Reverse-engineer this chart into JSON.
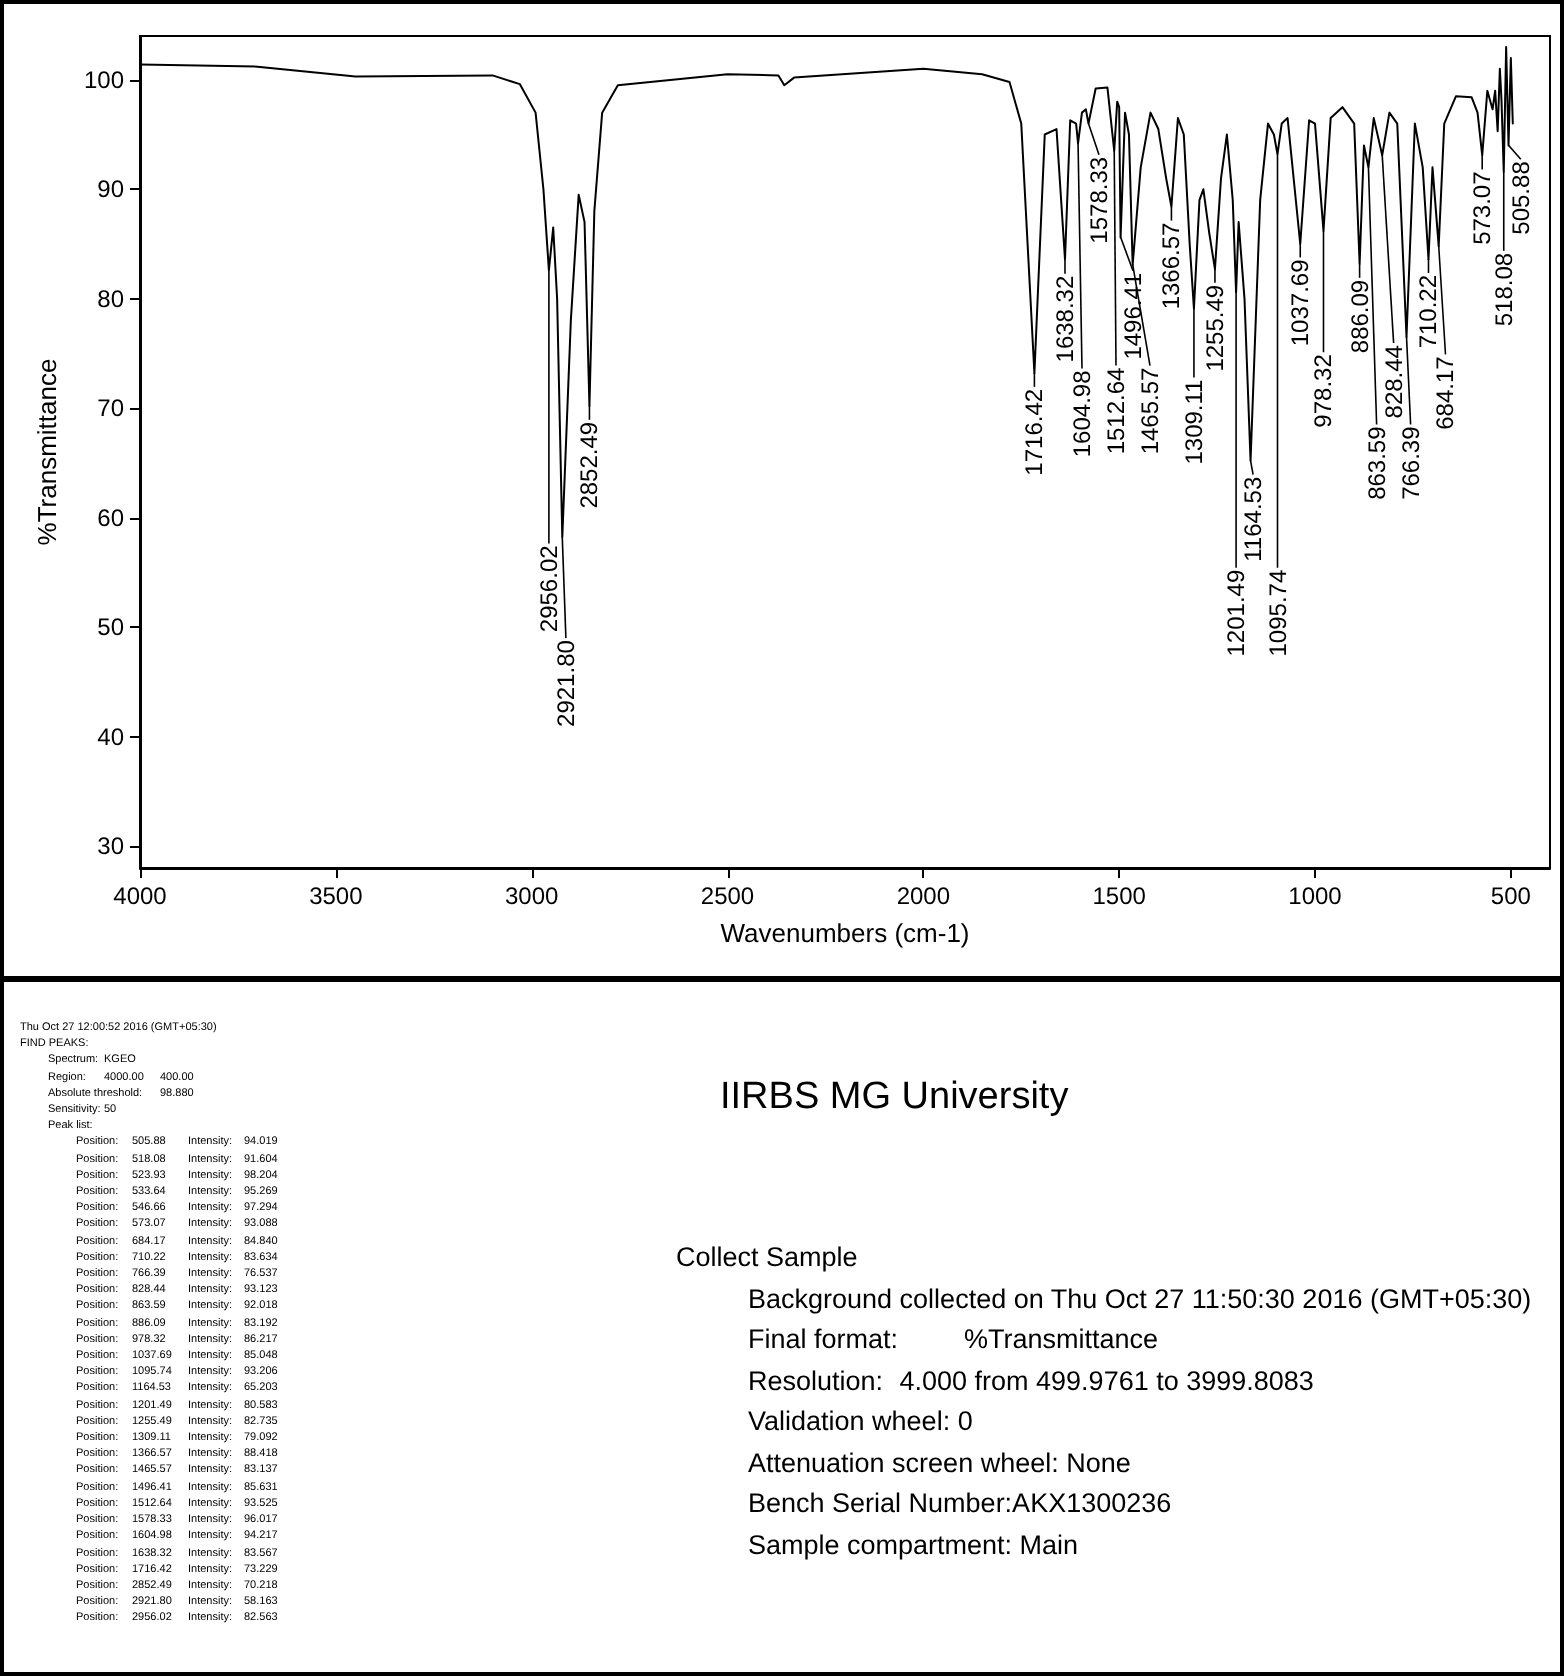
{
  "chart_data": {
    "type": "line",
    "title": "IIRBS MG University",
    "xlabel": "Wavenumbers (cm-1)",
    "ylabel": "%Transmittance",
    "xlim": [
      4000,
      400
    ],
    "xticks": [
      4000,
      3500,
      3000,
      2500,
      2000,
      1500,
      1000,
      500
    ],
    "ylim": [
      28,
      104
    ],
    "yticks": [
      30,
      40,
      50,
      60,
      70,
      80,
      90,
      100
    ],
    "grid": false,
    "marker": "none",
    "line_style": "solid",
    "series": [
      {
        "color": "#000000",
        "x": [
          4000,
          3700,
          3450,
          3100,
          3030,
          2990,
          2970,
          2956.02,
          2945,
          2935,
          2921.8,
          2900,
          2880,
          2865,
          2852.49,
          2840,
          2820,
          2780,
          2500,
          2370,
          2355,
          2330,
          2000,
          1850,
          1780,
          1750,
          1716.42,
          1690,
          1660,
          1638.32,
          1625,
          1610,
          1604.98,
          1595,
          1585,
          1578.33,
          1560,
          1530,
          1512.64,
          1505,
          1500,
          1496.41,
          1485,
          1475,
          1465.57,
          1445,
          1420,
          1400,
          1380,
          1366.57,
          1350,
          1335,
          1320,
          1309.11,
          1295,
          1285,
          1270,
          1255.49,
          1240,
          1225,
          1210,
          1201.49,
          1195,
          1180,
          1164.53,
          1140,
          1120,
          1105,
          1095.74,
          1085,
          1070,
          1037.69,
          1015,
          1000,
          978.32,
          960,
          930,
          900,
          886.09,
          875,
          863.59,
          850,
          828.44,
          810,
          790,
          766.39,
          745,
          725,
          710.22,
          700,
          684.17,
          670,
          640,
          600,
          585,
          573.07,
          560,
          546.66,
          540,
          533.64,
          528,
          523.93,
          518.08,
          512,
          505.88,
          500,
          495
        ],
        "values": [
          101.4,
          101.2,
          100.3,
          100.4,
          99.6,
          97,
          90,
          82.6,
          86.5,
          80,
          58.2,
          78,
          89.5,
          87,
          70.2,
          88,
          97,
          99.5,
          100.5,
          100.4,
          99.5,
          100.2,
          101,
          100.5,
          99.8,
          96,
          73.2,
          95,
          95.5,
          83.6,
          96.3,
          96,
          94.2,
          97,
          97.3,
          96,
          99.2,
          99.3,
          93.5,
          98,
          97.5,
          85.6,
          97,
          95,
          83.1,
          92,
          97,
          95.5,
          91,
          88.4,
          96.5,
          95,
          85,
          79.1,
          89,
          90,
          86,
          82.7,
          91,
          95,
          89,
          80.6,
          87,
          80,
          65.2,
          89,
          96,
          95,
          93.2,
          96,
          96.5,
          85,
          96.3,
          96,
          86.2,
          96.5,
          97.5,
          96,
          83.2,
          94,
          92,
          96.5,
          93.1,
          97,
          96,
          76.5,
          96,
          92,
          83.6,
          92,
          84.8,
          96,
          98.5,
          98.4,
          97,
          93.1,
          99,
          97.3,
          99,
          95.3,
          101,
          98.2,
          91.6,
          103,
          94,
          102,
          96
        ]
      }
    ],
    "annotations": [
      {
        "text": "2956.02",
        "x": 2956.02,
        "y": 82.563
      },
      {
        "text": "2921.80",
        "x": 2921.8,
        "y": 58.163
      },
      {
        "text": "2852.49",
        "x": 2852.49,
        "y": 70.218
      },
      {
        "text": "1716.42",
        "x": 1716.42,
        "y": 73.229
      },
      {
        "text": "1638.32",
        "x": 1638.32,
        "y": 83.567
      },
      {
        "text": "1604.98",
        "x": 1604.98,
        "y": 94.217
      },
      {
        "text": "1578.33",
        "x": 1578.33,
        "y": 96.017
      },
      {
        "text": "1512.64",
        "x": 1512.64,
        "y": 93.525
      },
      {
        "text": "1496.41",
        "x": 1496.41,
        "y": 85.631
      },
      {
        "text": "1465.57",
        "x": 1465.57,
        "y": 83.137
      },
      {
        "text": "1366.57",
        "x": 1366.57,
        "y": 88.418
      },
      {
        "text": "1309.11",
        "x": 1309.11,
        "y": 79.092
      },
      {
        "text": "1255.49",
        "x": 1255.49,
        "y": 82.735
      },
      {
        "text": "1201.49",
        "x": 1201.49,
        "y": 80.583
      },
      {
        "text": "1164.53",
        "x": 1164.53,
        "y": 65.203
      },
      {
        "text": "1095.74",
        "x": 1095.74,
        "y": 93.206
      },
      {
        "text": "1037.69",
        "x": 1037.69,
        "y": 85.048
      },
      {
        "text": "978.32",
        "x": 978.32,
        "y": 86.217
      },
      {
        "text": "886.09",
        "x": 886.09,
        "y": 83.192
      },
      {
        "text": "863.59",
        "x": 863.59,
        "y": 92.018
      },
      {
        "text": "828.44",
        "x": 828.44,
        "y": 93.123
      },
      {
        "text": "766.39",
        "x": 766.39,
        "y": 76.537
      },
      {
        "text": "710.22",
        "x": 710.22,
        "y": 83.634
      },
      {
        "text": "684.17",
        "x": 684.17,
        "y": 84.84
      },
      {
        "text": "573.07",
        "x": 573.07,
        "y": 93.088
      },
      {
        "text": "518.08",
        "x": 518.08,
        "y": 91.604
      },
      {
        "text": "505.88",
        "x": 505.88,
        "y": 94.019
      },
      "Thu Oct 27 12:00:52 2016 (GMT+05:30)\nFIND PEAKS:\n\tSpectrum:\tKGEO\n\tRegion:\t4000.00\t400.00\n\tAbsolute threshold:\t98.880\n\tSensitivity:\t50\n\tPeak list:\n\t\tPosition:\t505.88\tIntensity:\t94.019\n\t\tPosition:\t518.08\tIntensity:\t91.604\n\t\tPosition:\t523.93\tIntensity:\t98.204\n\t\tPosition:\t533.64\tIntensity:\t95.269\n\t\tPosition:\t546.66\tIntensity:\t97.294\n\t\tPosition:\t573.07\tIntensity:\t93.088\n\t\tPosition:\t684.17\tIntensity:\t84.840\n\t\tPosition:\t710.22\tIntensity:\t83.634\n\t\tPosition:\t766.39\tIntensity:\t76.537\n\t\tPosition:\t828.44\tIntensity:\t93.123\n\t\tPosition:\t863.59\tIntensity:\t92.018\n\t\tPosition:\t886.09\tIntensity:\t83.192\n\t\tPosition:\t978.32\tIntensity:\t86.217\n\t\tPosition:\t1037.69\tIntensity:\t85.048\n\t\tPosition:\t1095.74\tIntensity:\t93.206\n\t\tPosition:\t1164.53\tIntensity:\t65.203\n\t\tPosition:\t1201.49\tIntensity:\t80.583\n\t\tPosition:\t1255.49\tIntensity:\t82.735\n\t\tPosition:\t1309.11\tIntensity:\t79.092\n\t\tPosition:\t1366.57\tIntensity:\t88.418\n\t\tPosition:\t1465.57\tIntensity:\t83.137\n\t\tPosition:\t1496.41\tIntensity:\t85.631\n\t\tPosition:\t1512.64\tIntensity:\t93.525\n\t\tPosition:\t1578.33\tIntensity:\t96.017\n\t\tPosition:\t1604.98\tIntensity:\t94.217\n\t\tPosition:\t1638.32\tIntensity:\t83.567\n\t\tPosition:\t1716.42\tIntensity:\t73.229\n\t\tPosition:\t2852.49\tIntensity:\t70.218\n\t\tPosition:\t2921.80\tIntensity:\t58.163\n\t\tPosition:\t2956.02\tIntensity:\t82.563",
      "Collect Sample\n\tBackground collected on Thu Oct 27 11:50:30 2016 (GMT+05:30)\n\tFinal format:\t%Transmittance\n\tResolution:\t 4.000 from 499.9761 to 3999.8083\n\tValidation wheel: 0\n\tAttenuation screen wheel: None\n\tBench Serial Number:AKX1300236\n\tSample compartment: Main"
    ]
  }
}
